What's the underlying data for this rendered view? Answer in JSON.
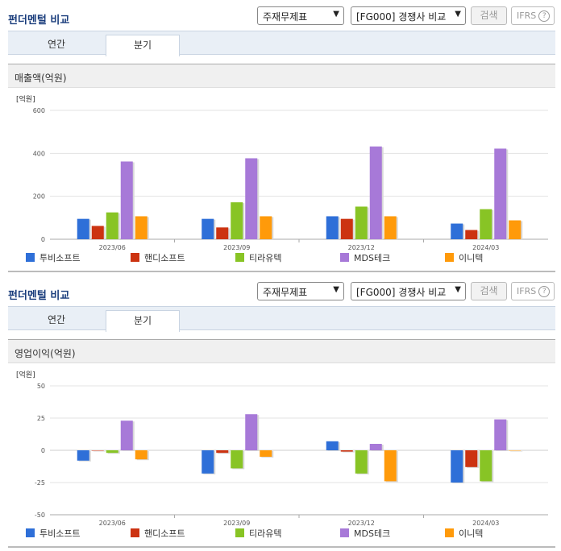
{
  "header": {
    "title": "펀더멘털 비교",
    "select_statement": "주재무제표",
    "select_group": "[FG000] 경쟁사 비교",
    "search_label": "검색",
    "ifrs_label": "IFRS",
    "help_icon": "question-icon"
  },
  "tabs": [
    {
      "label": "연간"
    },
    {
      "label": "분기"
    }
  ],
  "colors": {
    "투비소프트": "#2e6fd8",
    "핸디소프트": "#cc3311",
    "티라유텍": "#88c425",
    "MDS테크": "#a779d8",
    "이니텍": "#ff9a0a"
  },
  "chart_data": [
    {
      "type": "bar",
      "title": "매출액(억원)",
      "unit_label": "[억원]",
      "categories": [
        "2023/06",
        "2023/09",
        "2023/12",
        "2024/03"
      ],
      "ylim": [
        0,
        600
      ],
      "yticks": [
        0,
        200,
        400,
        600
      ],
      "grid": true,
      "legend": "bottom",
      "series": [
        {
          "name": "투비소프트",
          "values": [
            95,
            95,
            107,
            73
          ]
        },
        {
          "name": "핸디소프트",
          "values": [
            62,
            55,
            95,
            43
          ]
        },
        {
          "name": "티라유텍",
          "values": [
            125,
            172,
            152,
            140
          ]
        },
        {
          "name": "MDS테크",
          "values": [
            362,
            377,
            432,
            422
          ]
        },
        {
          "name": "이니텍",
          "values": [
            107,
            107,
            107,
            88
          ]
        }
      ]
    },
    {
      "type": "bar",
      "title": "영업이익(억원)",
      "unit_label": "[억원]",
      "categories": [
        "2023/06",
        "2023/09",
        "2023/12",
        "2024/03"
      ],
      "ylim": [
        -50,
        50
      ],
      "yticks": [
        -50,
        -25,
        0,
        25,
        50
      ],
      "grid": true,
      "legend": "bottom",
      "series": [
        {
          "name": "투비소프트",
          "values": [
            -8,
            -18,
            7,
            -25
          ]
        },
        {
          "name": "핸디소프트",
          "values": [
            0,
            -2,
            -1,
            -13
          ]
        },
        {
          "name": "티라유텍",
          "values": [
            -2,
            -14,
            -18,
            -24
          ]
        },
        {
          "name": "MDS테크",
          "values": [
            23,
            28,
            5,
            24
          ]
        },
        {
          "name": "이니텍",
          "values": [
            -7,
            -5,
            -24,
            0
          ]
        }
      ]
    }
  ]
}
